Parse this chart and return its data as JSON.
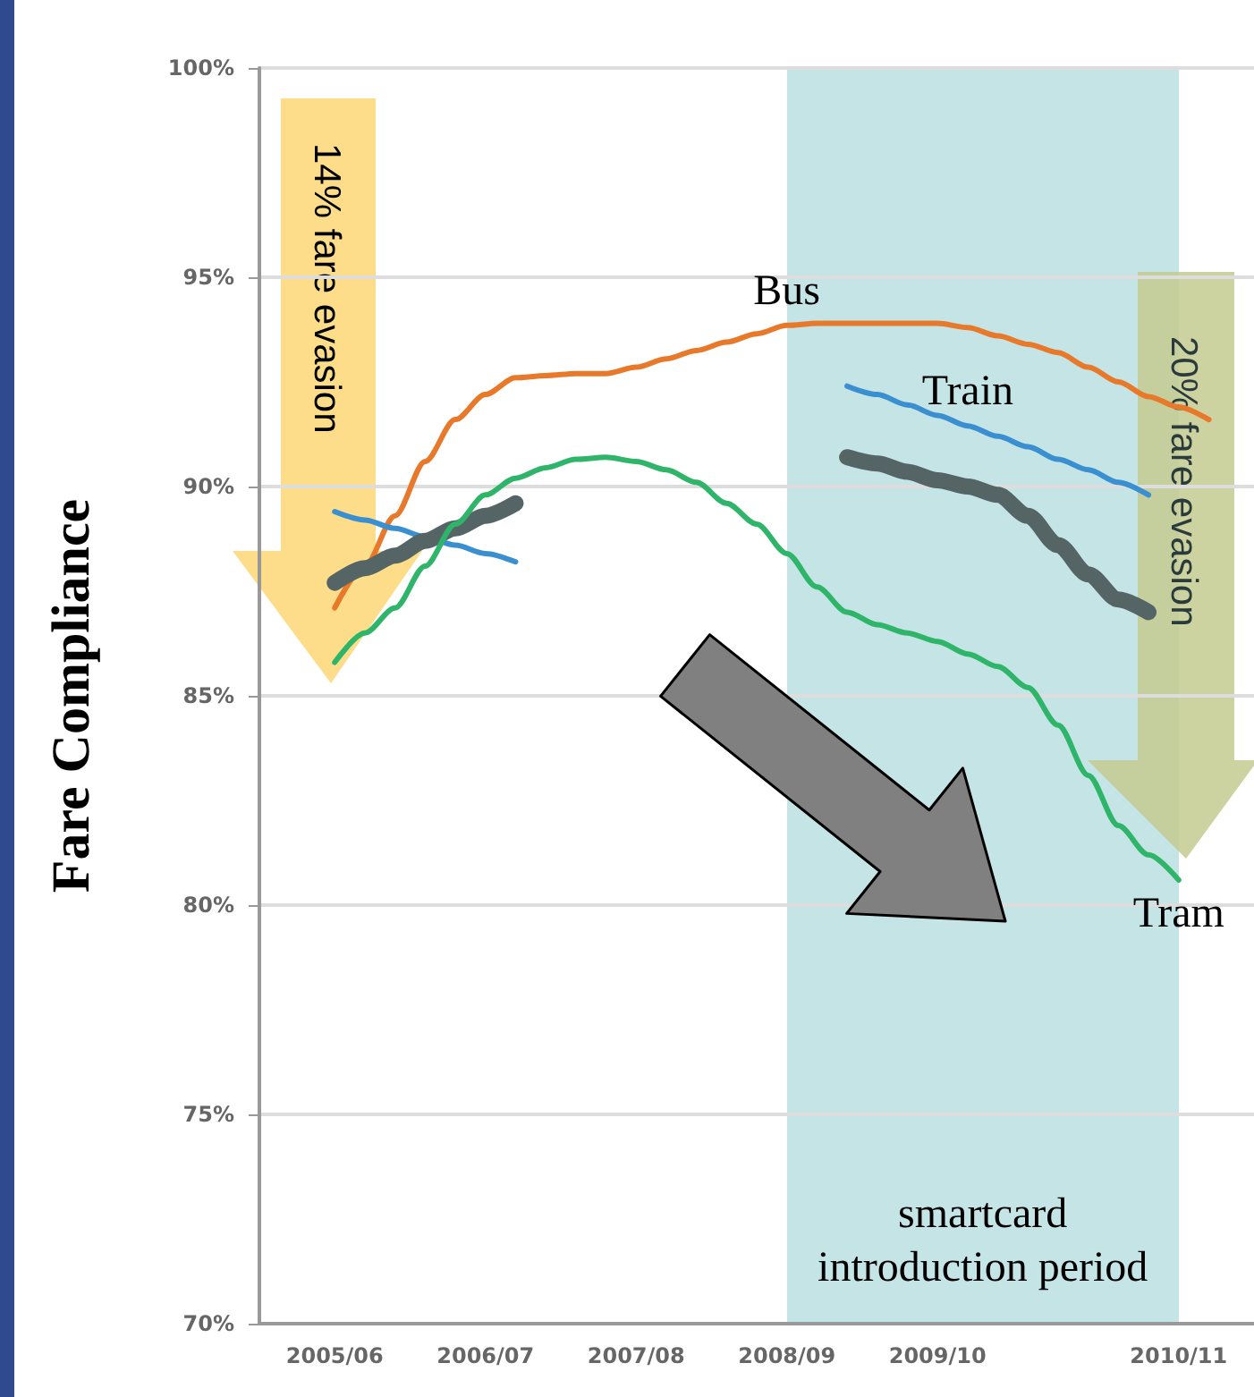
{
  "chart_data": {
    "type": "line",
    "ylabel": "Fare Compliance",
    "annotations": [
      "14% fare evasion",
      "20% fare evasion"
    ],
    "categories": [
      null,
      null,
      "2005/06",
      null,
      null,
      null,
      null,
      "2006/07",
      null,
      null,
      null,
      null,
      "2007/08",
      null,
      null,
      null,
      null,
      "2008/09",
      null,
      null,
      null,
      null,
      "2009/10",
      null,
      null,
      null,
      null,
      null,
      null,
      null,
      "2010/11",
      null,
      null
    ],
    "ylim": [
      70,
      100
    ],
    "yticks": [
      {
        "value": 70,
        "label": "70%"
      },
      {
        "value": 75,
        "label": "75%"
      },
      {
        "value": 80,
        "label": "80%"
      },
      {
        "value": 85,
        "label": "85%"
      },
      {
        "value": 90,
        "label": "90%"
      },
      {
        "value": 95,
        "label": "95%"
      },
      {
        "value": 100,
        "label": "100%"
      }
    ],
    "grid": "y",
    "line_style": "solid",
    "marker": "none",
    "bands": [
      {
        "axis": "x",
        "from": "2008/09",
        "to": "2010/11",
        "label": "smartcard introduction period",
        "color": "#c5e4e6"
      }
    ],
    "series": [
      {
        "name": "Bus",
        "color": "#e8792a",
        "values": [
          null,
          null,
          87.1,
          88.1,
          89.3,
          90.6,
          91.6,
          92.2,
          92.6,
          92.65,
          92.7,
          92.7,
          92.85,
          93.05,
          93.25,
          93.45,
          93.65,
          93.85,
          93.9,
          93.9,
          93.9,
          93.9,
          93.9,
          93.8,
          93.6,
          93.4,
          93.2,
          92.85,
          92.5,
          92.15,
          91.9,
          91.6,
          null
        ]
      },
      {
        "name": "Train",
        "color": "#3a8fd0",
        "values": [
          null,
          null,
          89.4,
          89.2,
          89.0,
          88.8,
          88.6,
          88.4,
          88.2,
          null,
          null,
          null,
          null,
          null,
          null,
          null,
          null,
          null,
          null,
          92.4,
          92.2,
          91.95,
          91.7,
          91.45,
          91.2,
          90.95,
          90.65,
          90.4,
          90.1,
          89.8,
          null,
          null,
          null
        ]
      },
      {
        "color": "#556566",
        "values": [
          null,
          null,
          87.7,
          88.05,
          88.35,
          88.7,
          89.0,
          89.3,
          89.6,
          null,
          null,
          null,
          null,
          null,
          null,
          null,
          null,
          null,
          null,
          90.7,
          90.55,
          90.35,
          90.15,
          90.0,
          89.8,
          89.3,
          88.6,
          87.9,
          87.3,
          87.0,
          null,
          null,
          null
        ]
      },
      {
        "name": "Tram",
        "color": "#2eb56a",
        "values": [
          null,
          null,
          85.8,
          86.5,
          87.1,
          88.1,
          89.1,
          89.8,
          90.2,
          90.45,
          90.65,
          90.7,
          90.6,
          90.4,
          90.1,
          89.6,
          89.1,
          88.4,
          87.6,
          87.0,
          86.7,
          86.5,
          86.3,
          86.0,
          85.7,
          85.2,
          84.3,
          83.1,
          81.9,
          81.2,
          80.6,
          null,
          null
        ]
      }
    ]
  }
}
